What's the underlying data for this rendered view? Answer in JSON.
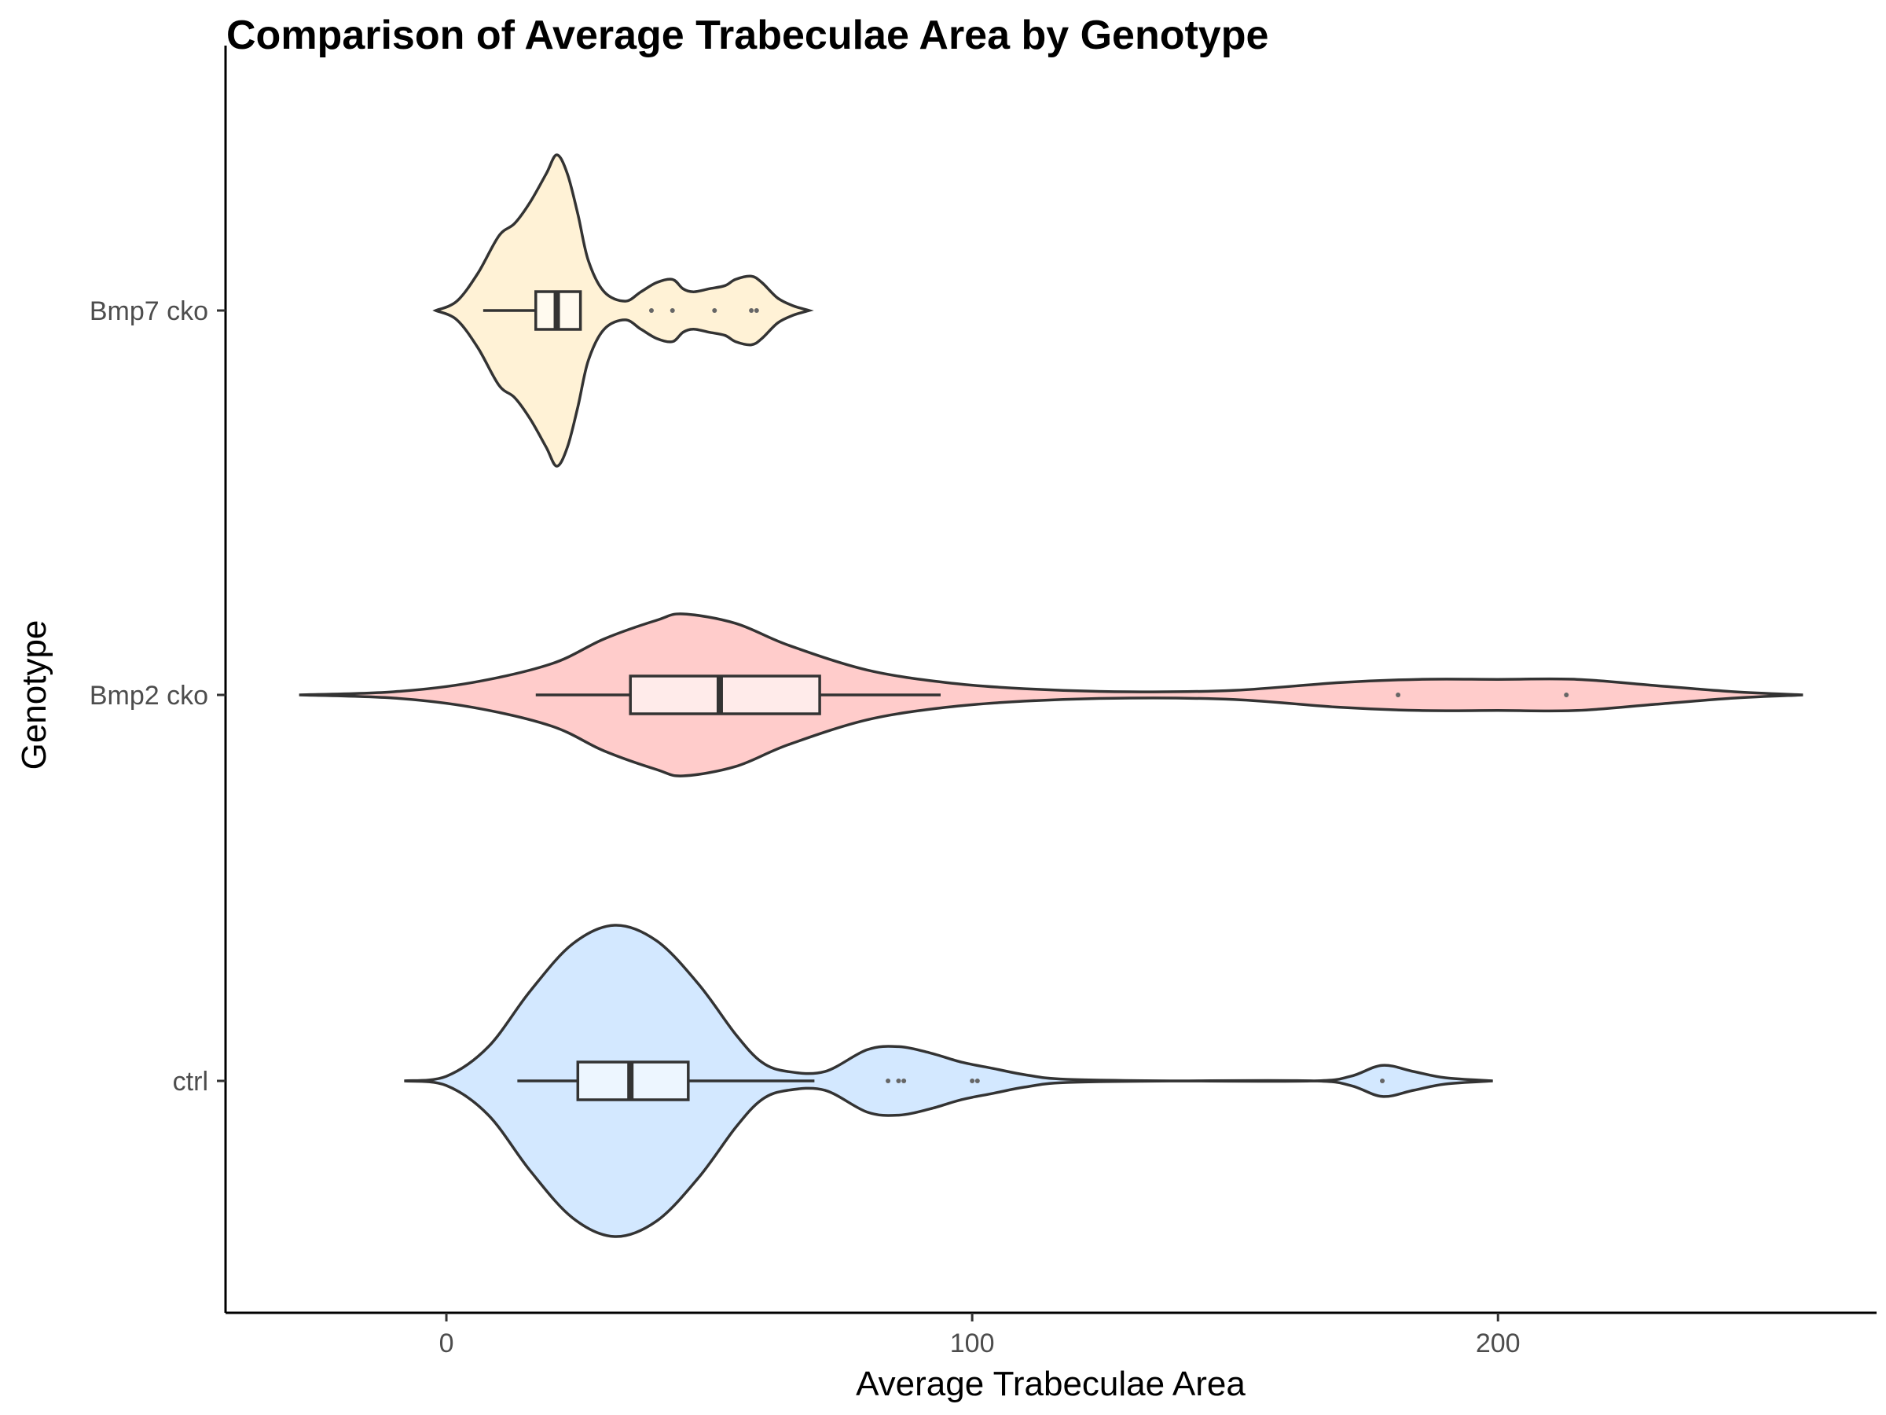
{
  "chart_data": {
    "type": "violin",
    "title": "Comparison of Average Trabeculae Area by Genotype",
    "xlabel": "Average Trabeculae Area",
    "ylabel": "Genotype",
    "xlim": [
      -42,
      272
    ],
    "x_ticks": [
      0,
      100,
      200
    ],
    "categories": [
      "Bmp7 cko",
      "Bmp2 cko",
      "ctrl"
    ],
    "grid": false,
    "legend": "none",
    "box_fill": "#ffffff",
    "series": [
      {
        "name": "Bmp7 cko",
        "color": "#fff2d6",
        "density": [
          [
            -2,
            0.0
          ],
          [
            2,
            0.06
          ],
          [
            6,
            0.24
          ],
          [
            10,
            0.48
          ],
          [
            13,
            0.56
          ],
          [
            16,
            0.7
          ],
          [
            19,
            0.88
          ],
          [
            21,
            1.0
          ],
          [
            23,
            0.88
          ],
          [
            25,
            0.62
          ],
          [
            27,
            0.32
          ],
          [
            30,
            0.12
          ],
          [
            34,
            0.06
          ],
          [
            37,
            0.12
          ],
          [
            40,
            0.18
          ],
          [
            43,
            0.2
          ],
          [
            45,
            0.14
          ],
          [
            47,
            0.12
          ],
          [
            50,
            0.14
          ],
          [
            53,
            0.16
          ],
          [
            55,
            0.2
          ],
          [
            58,
            0.22
          ],
          [
            60,
            0.18
          ],
          [
            63,
            0.08
          ],
          [
            66,
            0.03
          ],
          [
            69,
            0.0
          ]
        ],
        "box": {
          "min": 7,
          "q1": 17,
          "median": 21,
          "q3": 25.5,
          "max": 25.5
        },
        "points": [
          39,
          43,
          51,
          58,
          59
        ]
      },
      {
        "name": "Bmp2 cko",
        "color": "#ffcccb",
        "density": [
          [
            -28,
            0.0
          ],
          [
            -10,
            0.02
          ],
          [
            5,
            0.08
          ],
          [
            20,
            0.2
          ],
          [
            30,
            0.36
          ],
          [
            40,
            0.48
          ],
          [
            45,
            0.52
          ],
          [
            55,
            0.46
          ],
          [
            65,
            0.32
          ],
          [
            80,
            0.16
          ],
          [
            95,
            0.08
          ],
          [
            110,
            0.04
          ],
          [
            130,
            0.02
          ],
          [
            150,
            0.03
          ],
          [
            170,
            0.08
          ],
          [
            185,
            0.1
          ],
          [
            200,
            0.1
          ],
          [
            215,
            0.1
          ],
          [
            230,
            0.06
          ],
          [
            245,
            0.02
          ],
          [
            258,
            0.0
          ]
        ],
        "box": {
          "min": 17,
          "q1": 35,
          "median": 52,
          "q3": 71,
          "max": 94
        },
        "points": [
          181,
          213
        ]
      },
      {
        "name": "ctrl",
        "color": "#d3e8ff",
        "density": [
          [
            -8,
            0.0
          ],
          [
            0,
            0.03
          ],
          [
            8,
            0.22
          ],
          [
            16,
            0.58
          ],
          [
            24,
            0.88
          ],
          [
            32,
            1.0
          ],
          [
            40,
            0.9
          ],
          [
            48,
            0.62
          ],
          [
            55,
            0.3
          ],
          [
            60,
            0.12
          ],
          [
            65,
            0.06
          ],
          [
            72,
            0.06
          ],
          [
            80,
            0.2
          ],
          [
            86,
            0.22
          ],
          [
            92,
            0.18
          ],
          [
            98,
            0.12
          ],
          [
            104,
            0.08
          ],
          [
            110,
            0.04
          ],
          [
            118,
            0.01
          ],
          [
            140,
            0.0
          ],
          [
            165,
            0.0
          ],
          [
            172,
            0.03
          ],
          [
            178,
            0.1
          ],
          [
            184,
            0.06
          ],
          [
            190,
            0.02
          ],
          [
            199,
            0.0
          ]
        ],
        "box": {
          "min": 13.5,
          "q1": 25,
          "median": 35,
          "q3": 46,
          "max": 70
        },
        "points": [
          84,
          86,
          87,
          100,
          101,
          178
        ]
      }
    ]
  }
}
